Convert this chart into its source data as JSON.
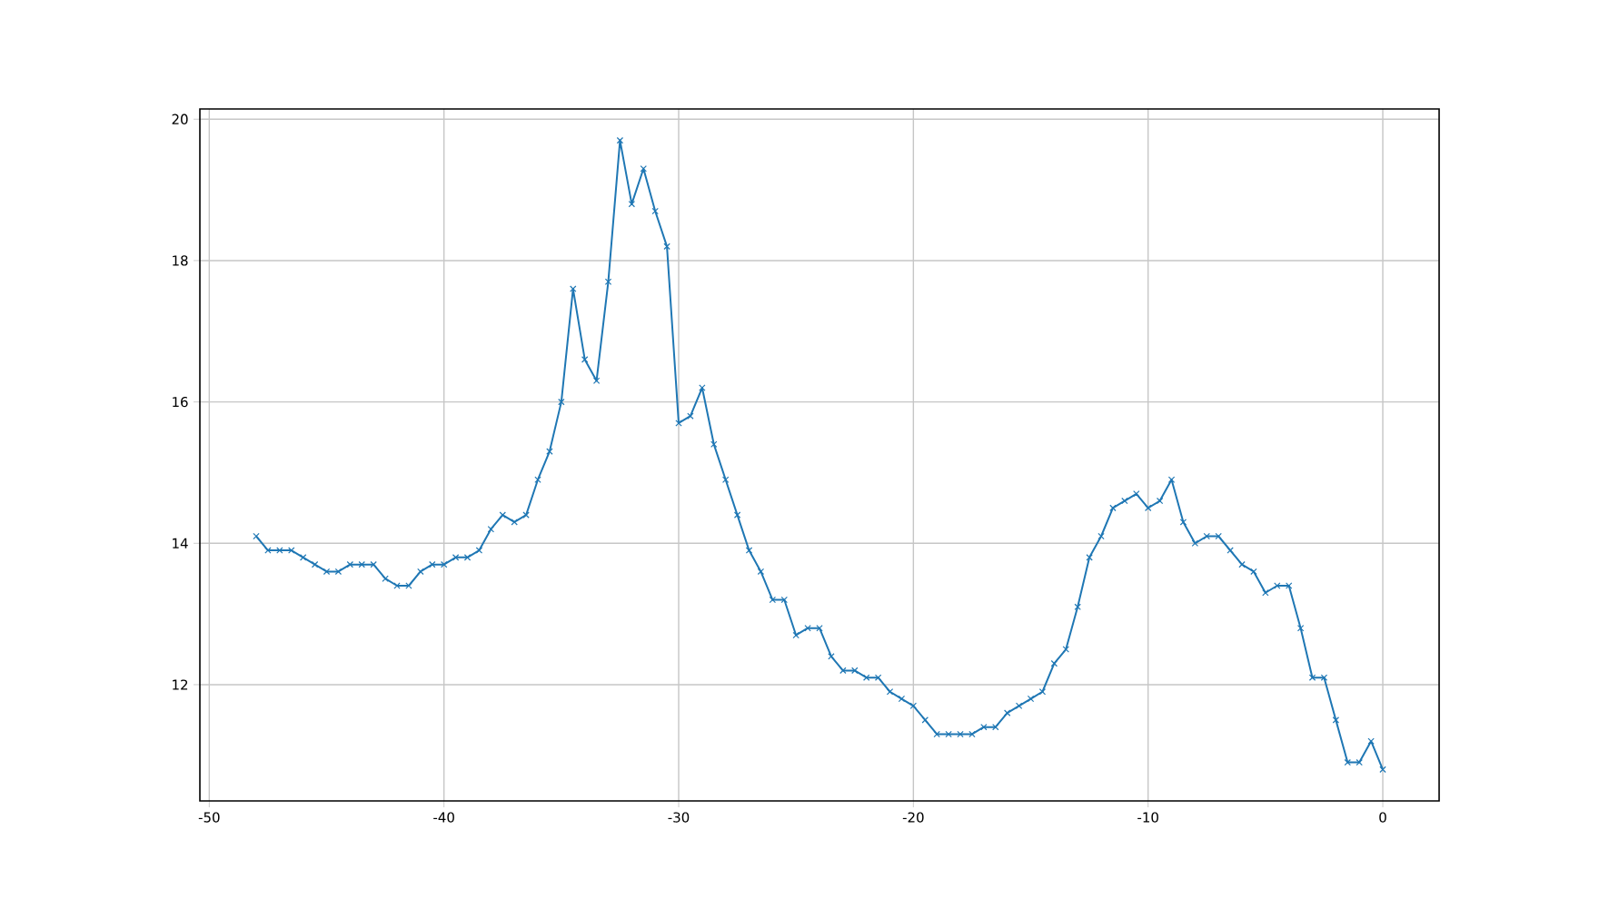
{
  "chart_data": {
    "type": "line",
    "color": "#1f77b4",
    "marker": "cross",
    "line_style": "solid",
    "grid": true,
    "x": [
      -48,
      -47.5,
      -47,
      -46.5,
      -46,
      -45.5,
      -45,
      -44.5,
      -44,
      -43.5,
      -43,
      -42.5,
      -42,
      -41.5,
      -41,
      -40.5,
      -40,
      -39.5,
      -39,
      -38.5,
      -38,
      -37.5,
      -37,
      -36.5,
      -36,
      -35.5,
      -35,
      -34.5,
      -34,
      -33.5,
      -33,
      -32.5,
      -32,
      -31.5,
      -31,
      -30.5,
      -30,
      -29.5,
      -29,
      -28.5,
      -28,
      -27.5,
      -27,
      -26.5,
      -26,
      -25.5,
      -25,
      -24.5,
      -24,
      -23.5,
      -23,
      -22.5,
      -22,
      -21.5,
      -21,
      -20.5,
      -20,
      -19.5,
      -19,
      -18.5,
      -18,
      -17.5,
      -17,
      -16.5,
      -16,
      -15.5,
      -15,
      -14.5,
      -14,
      -13.5,
      -13,
      -12.5,
      -12,
      -11.5,
      -11,
      -10.5,
      -10,
      -9.5,
      -9,
      -8.5,
      -8,
      -7.5,
      -7,
      -6.5,
      -6,
      -5.5,
      -5,
      -4.5,
      -4,
      -3.5,
      -3,
      -2.5,
      -2,
      -1.5,
      -1,
      -0.5,
      0
    ],
    "values": [
      14.1,
      13.9,
      13.9,
      13.9,
      13.8,
      13.7,
      13.6,
      13.6,
      13.7,
      13.7,
      13.7,
      13.5,
      13.4,
      13.4,
      13.6,
      13.7,
      13.7,
      13.8,
      13.8,
      13.9,
      14.2,
      14.4,
      14.3,
      14.4,
      14.9,
      15.3,
      16.0,
      17.6,
      16.6,
      16.3,
      17.7,
      19.7,
      18.8,
      19.3,
      18.7,
      18.2,
      15.7,
      15.8,
      16.2,
      15.4,
      14.9,
      14.4,
      13.9,
      13.6,
      13.2,
      13.2,
      12.7,
      12.8,
      12.8,
      12.4,
      12.2,
      12.2,
      12.1,
      12.1,
      11.9,
      11.8,
      11.7,
      11.5,
      11.3,
      11.3,
      11.3,
      11.3,
      11.4,
      11.4,
      11.6,
      11.7,
      11.8,
      11.9,
      12.3,
      12.5,
      13.1,
      13.8,
      14.1,
      14.5,
      14.6,
      14.7,
      14.5,
      14.6,
      14.9,
      14.3,
      14.0,
      14.1,
      14.1,
      13.9,
      13.7,
      13.6,
      13.3,
      13.4,
      13.4,
      12.8,
      12.1,
      12.1,
      11.5,
      10.9,
      10.9,
      11.2,
      10.8
    ],
    "xlim": [
      -50.4,
      2.4
    ],
    "ylim": [
      10.355,
      20.145
    ],
    "xticks": [
      -50,
      -40,
      -30,
      -20,
      -10,
      0
    ],
    "yticks": [
      12,
      14,
      16,
      18,
      20
    ]
  }
}
